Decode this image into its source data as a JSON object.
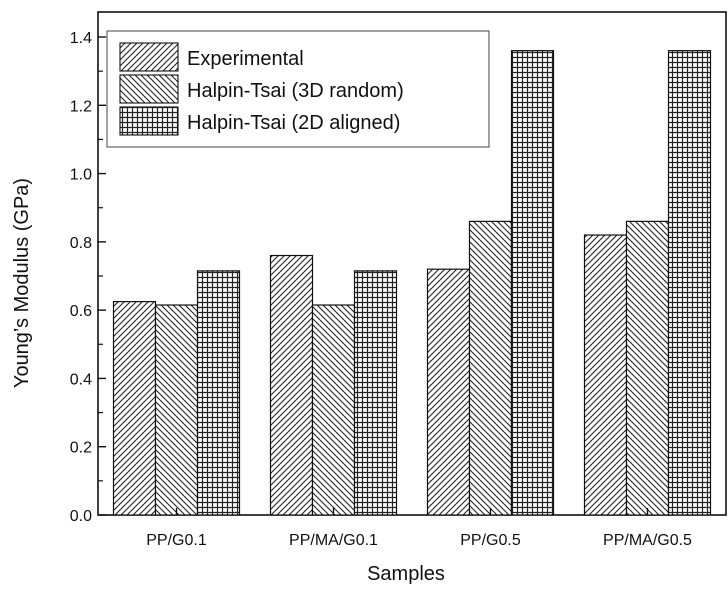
{
  "chart_data": {
    "type": "bar",
    "title": "",
    "xlabel": "Samples",
    "ylabel": "Young’s Modulus (GPa)",
    "categories": [
      "PP/G0.1",
      "PP/MA/G0.1",
      "PP/G0.5",
      "PP/MA/G0.5"
    ],
    "series": [
      {
        "name": "Experimental",
        "values": [
          0.625,
          0.76,
          0.72,
          0.82
        ]
      },
      {
        "name": "Halpin-Tsai (3D random)",
        "values": [
          0.615,
          0.615,
          0.86,
          0.86
        ]
      },
      {
        "name": "Halpin-Tsai (2D aligned)",
        "values": [
          0.715,
          0.715,
          1.36,
          1.36
        ]
      }
    ],
    "ylim": [
      0,
      1.4
    ],
    "yticks": [
      "0.0",
      "0.2",
      "0.4",
      "0.6",
      "0.8",
      "1.0",
      "1.2",
      "1.4"
    ],
    "grid": false,
    "legend_position": "top-left",
    "patterns": [
      "diagonal-up",
      "diagonal-down",
      "crosshatch"
    ]
  }
}
